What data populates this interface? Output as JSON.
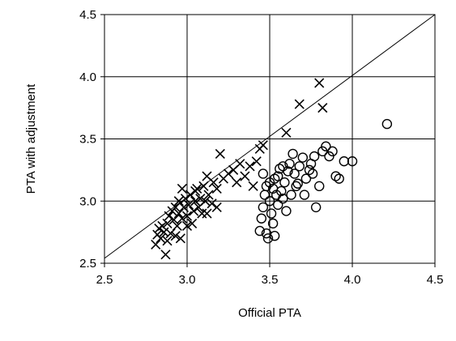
{
  "chart_data": {
    "type": "scatter",
    "title": "",
    "xlabel": "Official PTA",
    "ylabel": "PTA with adjustment",
    "xlim": [
      2.5,
      4.5
    ],
    "ylim": [
      2.5,
      4.5
    ],
    "x_ticks": [
      "2.5",
      "3.0",
      "3.5",
      "4.0",
      "4.5"
    ],
    "y_ticks": [
      "2.5",
      "3.0",
      "3.5",
      "4.0",
      "4.5"
    ],
    "grid": true,
    "legend": "none",
    "reference_line": {
      "type": "identity",
      "from": [
        2.5,
        2.54
      ],
      "to": [
        4.5,
        4.5
      ]
    },
    "series": [
      {
        "marker": "x",
        "color": "#000000",
        "points": [
          [
            2.81,
            2.65
          ],
          [
            2.82,
            2.73
          ],
          [
            2.83,
            2.78
          ],
          [
            2.84,
            2.7
          ],
          [
            2.85,
            2.8
          ],
          [
            2.86,
            2.75
          ],
          [
            2.87,
            2.57
          ],
          [
            2.88,
            2.68
          ],
          [
            2.88,
            2.82
          ],
          [
            2.89,
            2.88
          ],
          [
            2.9,
            2.74
          ],
          [
            2.91,
            2.92
          ],
          [
            2.92,
            2.85
          ],
          [
            2.93,
            2.95
          ],
          [
            2.94,
            2.8
          ],
          [
            2.95,
            2.9
          ],
          [
            2.95,
            3.0
          ],
          [
            2.96,
            2.7
          ],
          [
            2.97,
            2.86
          ],
          [
            2.98,
            2.95
          ],
          [
            2.99,
            3.02
          ],
          [
            3.0,
            2.88
          ],
          [
            3.01,
            2.97
          ],
          [
            3.02,
            3.05
          ],
          [
            3.03,
            2.82
          ],
          [
            3.04,
            2.92
          ],
          [
            3.05,
            3.0
          ],
          [
            3.06,
            3.1
          ],
          [
            3.07,
            2.95
          ],
          [
            3.08,
            3.02
          ],
          [
            3.09,
            2.9
          ],
          [
            3.1,
            3.12
          ],
          [
            3.11,
            3.0
          ],
          [
            3.12,
            3.2
          ],
          [
            3.13,
            3.05
          ],
          [
            3.15,
            2.98
          ],
          [
            3.16,
            3.15
          ],
          [
            3.18,
            3.1
          ],
          [
            3.2,
            3.38
          ],
          [
            3.22,
            3.18
          ],
          [
            3.25,
            3.22
          ],
          [
            3.28,
            3.25
          ],
          [
            3.3,
            3.15
          ],
          [
            3.32,
            3.3
          ],
          [
            3.35,
            3.2
          ],
          [
            3.38,
            3.28
          ],
          [
            3.4,
            3.12
          ],
          [
            3.42,
            3.32
          ],
          [
            3.44,
            3.42
          ],
          [
            3.46,
            3.45
          ],
          [
            3.6,
            3.55
          ],
          [
            3.68,
            3.78
          ],
          [
            3.8,
            3.95
          ],
          [
            3.82,
            3.75
          ],
          [
            2.97,
            3.1
          ],
          [
            3.05,
            3.08
          ],
          [
            3.0,
            2.8
          ],
          [
            2.93,
            2.72
          ],
          [
            3.12,
            2.9
          ],
          [
            3.18,
            2.95
          ]
        ]
      },
      {
        "marker": "circle",
        "color": "#000000",
        "points": [
          [
            3.44,
            2.76
          ],
          [
            3.45,
            2.86
          ],
          [
            3.46,
            2.95
          ],
          [
            3.47,
            3.05
          ],
          [
            3.48,
            2.74
          ],
          [
            3.49,
            2.7
          ],
          [
            3.5,
            3.15
          ],
          [
            3.5,
            3.0
          ],
          [
            3.51,
            2.9
          ],
          [
            3.52,
            2.82
          ],
          [
            3.52,
            3.1
          ],
          [
            3.53,
            2.72
          ],
          [
            3.54,
            3.05
          ],
          [
            3.55,
            3.2
          ],
          [
            3.55,
            2.97
          ],
          [
            3.56,
            3.26
          ],
          [
            3.57,
            3.08
          ],
          [
            3.58,
            3.02
          ],
          [
            3.59,
            3.15
          ],
          [
            3.6,
            2.92
          ],
          [
            3.62,
            3.3
          ],
          [
            3.63,
            3.05
          ],
          [
            3.64,
            3.38
          ],
          [
            3.65,
            3.22
          ],
          [
            3.66,
            3.12
          ],
          [
            3.68,
            3.28
          ],
          [
            3.7,
            3.35
          ],
          [
            3.72,
            3.18
          ],
          [
            3.74,
            3.25
          ],
          [
            3.75,
            3.3
          ],
          [
            3.77,
            3.36
          ],
          [
            3.78,
            2.95
          ],
          [
            3.8,
            3.12
          ],
          [
            3.82,
            3.4
          ],
          [
            3.84,
            3.44
          ],
          [
            3.86,
            3.36
          ],
          [
            3.88,
            3.4
          ],
          [
            3.9,
            3.2
          ],
          [
            3.92,
            3.18
          ],
          [
            3.95,
            3.32
          ],
          [
            4.0,
            3.32
          ],
          [
            4.21,
            3.62
          ],
          [
            3.46,
            3.22
          ],
          [
            3.48,
            3.12
          ],
          [
            3.53,
            3.18
          ],
          [
            3.58,
            3.28
          ],
          [
            3.61,
            3.24
          ],
          [
            3.67,
            3.14
          ],
          [
            3.71,
            3.05
          ],
          [
            3.76,
            3.22
          ]
        ]
      }
    ]
  }
}
